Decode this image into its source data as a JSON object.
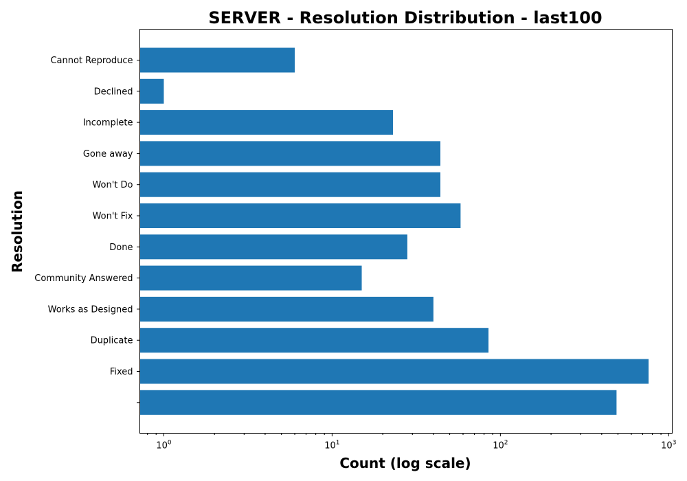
{
  "chart_data": {
    "type": "bar",
    "orientation": "horizontal",
    "title": "SERVER - Resolution Distribution - last100",
    "xlabel": "Count (log scale)",
    "ylabel": "Resolution",
    "x_scale": "log",
    "xlim": [
      0.72,
      1050
    ],
    "x_ticks": [
      {
        "base": "10",
        "exp": "0",
        "value": 1
      },
      {
        "base": "10",
        "exp": "1",
        "value": 10
      },
      {
        "base": "10",
        "exp": "2",
        "value": 100
      },
      {
        "base": "10",
        "exp": "3",
        "value": 1000
      }
    ],
    "categories": [
      "Cannot Reproduce",
      "Declined",
      "Incomplete",
      "Gone away",
      "Won't Do",
      "Won't Fix",
      "Done",
      "Community Answered",
      "Works as Designed",
      "Duplicate",
      "Fixed",
      ""
    ],
    "values": [
      6,
      1,
      23,
      44,
      44,
      58,
      28,
      15,
      40,
      85,
      760,
      490
    ],
    "bar_color": "#1f77b4",
    "grid": false,
    "legend": "none"
  }
}
